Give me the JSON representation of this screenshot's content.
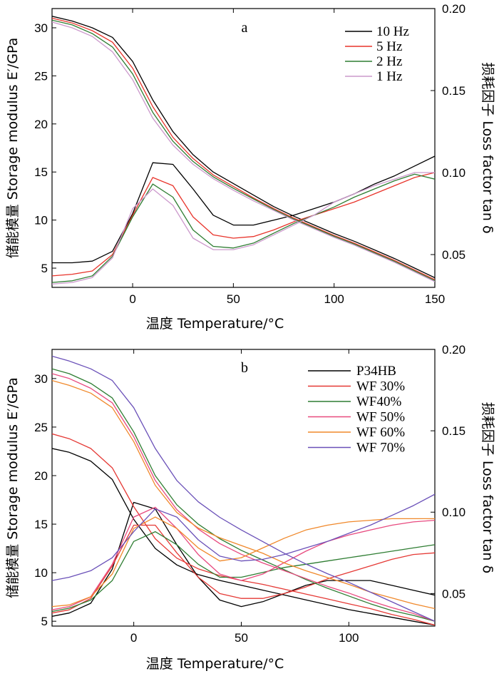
{
  "chart_data": [
    {
      "type": "line",
      "panel": "a",
      "xlabel": "温度  Temperature/°C",
      "ylabel_left": "储能模量  Storage modulus E′/GPa",
      "ylabel_right": "损耗因子 Loss factor tan δ",
      "xlim": [
        -40,
        150
      ],
      "ylim_left": [
        3,
        32
      ],
      "ylim_right": [
        0.03,
        0.2
      ],
      "xticks": [
        0,
        50,
        100,
        150
      ],
      "yticks_left": [
        5,
        10,
        15,
        20,
        25,
        30
      ],
      "yticks_right": [
        0.05,
        0.1,
        0.15,
        0.2
      ],
      "x": [
        -40,
        -30,
        -20,
        -10,
        0,
        10,
        20,
        30,
        40,
        50,
        60,
        70,
        80,
        90,
        100,
        110,
        120,
        130,
        140,
        150
      ],
      "series": [
        {
          "name": "10 Hz",
          "color": "#000000",
          "modulus": [
            31.2,
            30.7,
            30.0,
            29.0,
            26.5,
            22.5,
            19.2,
            16.8,
            15.0,
            13.8,
            12.6,
            11.4,
            10.4,
            9.5,
            8.6,
            7.8,
            6.9,
            6.0,
            5.0,
            4.0
          ],
          "tan_delta": [
            0.045,
            0.045,
            0.046,
            0.052,
            0.075,
            0.106,
            0.105,
            0.09,
            0.074,
            0.068,
            0.068,
            0.071,
            0.074,
            0.078,
            0.082,
            0.087,
            0.093,
            0.098,
            0.104,
            0.11
          ]
        },
        {
          "name": "5 Hz",
          "color": "#e8332a",
          "modulus": [
            31.0,
            30.5,
            29.7,
            28.5,
            25.8,
            21.8,
            18.6,
            16.4,
            14.7,
            13.5,
            12.3,
            11.2,
            10.2,
            9.3,
            8.4,
            7.6,
            6.7,
            5.8,
            4.8,
            3.8
          ],
          "tan_delta": [
            0.037,
            0.038,
            0.04,
            0.05,
            0.074,
            0.097,
            0.092,
            0.073,
            0.062,
            0.06,
            0.061,
            0.065,
            0.07,
            0.074,
            0.078,
            0.082,
            0.087,
            0.092,
            0.097,
            0.1
          ]
        },
        {
          "name": "2 Hz",
          "color": "#2e7d32",
          "modulus": [
            30.8,
            30.3,
            29.4,
            28.0,
            25.2,
            21.2,
            18.2,
            16.1,
            14.5,
            13.3,
            12.2,
            11.1,
            10.1,
            9.2,
            8.3,
            7.5,
            6.6,
            5.7,
            4.7,
            3.7
          ],
          "tan_delta": [
            0.033,
            0.034,
            0.037,
            0.049,
            0.073,
            0.093,
            0.085,
            0.065,
            0.055,
            0.054,
            0.057,
            0.063,
            0.069,
            0.074,
            0.079,
            0.085,
            0.09,
            0.095,
            0.099,
            0.096
          ]
        },
        {
          "name": "1 Hz",
          "color": "#cc99cc",
          "modulus": [
            30.6,
            30.0,
            29.1,
            27.5,
            24.6,
            20.6,
            17.8,
            15.8,
            14.3,
            13.1,
            12.0,
            11.0,
            10.0,
            9.1,
            8.2,
            7.4,
            6.5,
            5.6,
            4.6,
            3.6
          ],
          "tan_delta": [
            0.032,
            0.033,
            0.036,
            0.048,
            0.078,
            0.09,
            0.08,
            0.06,
            0.053,
            0.053,
            0.056,
            0.062,
            0.068,
            0.074,
            0.082,
            0.087,
            0.092,
            0.096,
            0.1,
            0.1
          ]
        }
      ]
    },
    {
      "type": "line",
      "panel": "b",
      "xlabel": "温度  Temperature/°C",
      "ylabel_left": "储能模量  Storage modulus E′/GPa",
      "ylabel_right": "损耗因子 Loss factor tan δ",
      "xlim": [
        -38,
        140
      ],
      "ylim_left": [
        4.5,
        33
      ],
      "ylim_right": [
        0.03,
        0.2
      ],
      "xticks": [
        0,
        50,
        100
      ],
      "yticks_left": [
        5,
        10,
        15,
        20,
        25,
        30
      ],
      "yticks_right": [
        0.05,
        0.1,
        0.15,
        0.2
      ],
      "x": [
        -38,
        -30,
        -20,
        -10,
        0,
        10,
        20,
        30,
        40,
        50,
        60,
        70,
        80,
        90,
        100,
        110,
        120,
        130,
        140
      ],
      "series": [
        {
          "name": "P34HB",
          "color": "#000000",
          "modulus": [
            22.8,
            22.4,
            21.5,
            19.6,
            15.5,
            12.5,
            10.8,
            9.8,
            9.2,
            8.7,
            8.2,
            7.7,
            7.2,
            6.7,
            6.2,
            5.8,
            5.4,
            5.0,
            4.6
          ],
          "tan_delta": [
            0.036,
            0.038,
            0.044,
            0.065,
            0.106,
            0.102,
            0.08,
            0.06,
            0.046,
            0.042,
            0.045,
            0.05,
            0.055,
            0.058,
            0.058,
            0.058,
            0.055,
            0.052,
            0.049
          ]
        },
        {
          "name": "WF 30%",
          "color": "#e53935",
          "modulus": [
            24.3,
            23.8,
            22.8,
            20.8,
            16.8,
            13.5,
            11.5,
            10.4,
            9.7,
            9.2,
            8.8,
            8.3,
            7.8,
            7.3,
            6.8,
            6.3,
            5.7,
            5.2,
            4.6
          ],
          "tan_delta": [
            0.038,
            0.04,
            0.047,
            0.067,
            0.092,
            0.092,
            0.075,
            0.06,
            0.05,
            0.047,
            0.047,
            0.05,
            0.054,
            0.059,
            0.063,
            0.067,
            0.071,
            0.074,
            0.075
          ]
        },
        {
          "name": "WF40%",
          "color": "#2e7d32",
          "modulus": [
            31.0,
            30.5,
            29.5,
            28.0,
            24.5,
            20.0,
            17.0,
            15.0,
            13.5,
            12.3,
            11.3,
            10.3,
            9.3,
            8.4,
            7.6,
            6.8,
            6.1,
            5.6,
            5.0
          ],
          "tan_delta": [
            0.039,
            0.041,
            0.046,
            0.058,
            0.082,
            0.088,
            0.08,
            0.068,
            0.06,
            0.06,
            0.063,
            0.066,
            0.068,
            0.07,
            0.072,
            0.074,
            0.076,
            0.078,
            0.08
          ]
        },
        {
          "name": "WF 50%",
          "color": "#e84a7f",
          "modulus": [
            30.5,
            30.0,
            29.0,
            27.5,
            24.0,
            19.5,
            16.5,
            14.5,
            13.0,
            11.9,
            11.0,
            10.2,
            9.4,
            8.6,
            7.9,
            7.1,
            6.4,
            5.8,
            5.0
          ],
          "tan_delta": [
            0.04,
            0.042,
            0.048,
            0.068,
            0.097,
            0.103,
            0.09,
            0.074,
            0.062,
            0.058,
            0.062,
            0.069,
            0.076,
            0.082,
            0.086,
            0.089,
            0.092,
            0.094,
            0.095
          ]
        },
        {
          "name": "WF 60%",
          "color": "#f0882a",
          "modulus": [
            29.8,
            29.3,
            28.5,
            27.0,
            23.5,
            19.0,
            16.2,
            14.6,
            13.6,
            12.8,
            12.0,
            11.0,
            10.2,
            9.5,
            8.8,
            8.0,
            7.4,
            6.8,
            6.3
          ],
          "tan_delta": [
            0.042,
            0.043,
            0.048,
            0.062,
            0.09,
            0.097,
            0.09,
            0.078,
            0.07,
            0.072,
            0.078,
            0.084,
            0.089,
            0.092,
            0.094,
            0.095,
            0.096,
            0.096,
            0.096
          ]
        },
        {
          "name": "WF 70%",
          "color": "#6a50b8",
          "modulus": [
            32.3,
            31.8,
            31.0,
            29.8,
            27.0,
            22.8,
            19.5,
            17.3,
            15.7,
            14.4,
            13.2,
            12.0,
            10.9,
            9.9,
            9.0,
            8.0,
            7.0,
            6.0,
            5.0
          ],
          "tan_delta": [
            0.058,
            0.06,
            0.064,
            0.072,
            0.088,
            0.102,
            0.097,
            0.083,
            0.073,
            0.07,
            0.071,
            0.074,
            0.078,
            0.082,
            0.087,
            0.092,
            0.098,
            0.104,
            0.111
          ]
        }
      ]
    }
  ]
}
